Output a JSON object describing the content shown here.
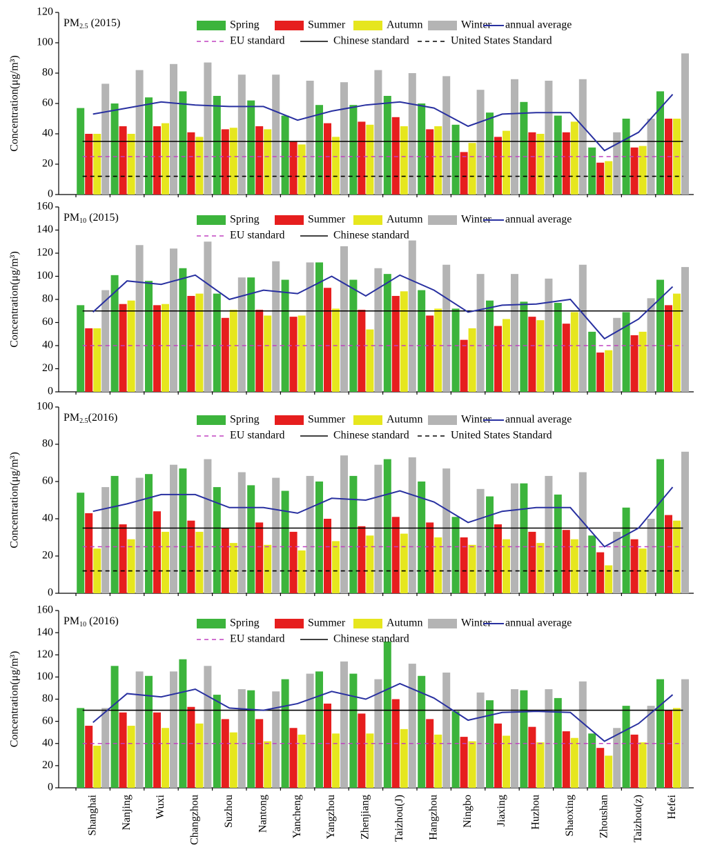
{
  "chart_data": [
    {
      "type": "bar",
      "title_main": "PM",
      "title_sub": "2.5",
      "title_year": " (2015)",
      "y_label": "Concentration(μg/m³)",
      "ylim": [
        0,
        120
      ],
      "yticks": [
        0,
        20,
        40,
        60,
        80,
        100,
        120
      ],
      "series": [
        {
          "name": "Spring",
          "color": "#3cb43c",
          "kind": "bar",
          "values": [
            57,
            60,
            64,
            68,
            65,
            62,
            52,
            59,
            59,
            65,
            60,
            46,
            54,
            61,
            52,
            31,
            50,
            68
          ]
        },
        {
          "name": "Summer",
          "color": "#e61e1e",
          "kind": "bar",
          "values": [
            40,
            45,
            45,
            41,
            43,
            45,
            35,
            47,
            48,
            51,
            43,
            28,
            38,
            41,
            41,
            21,
            31,
            50
          ]
        },
        {
          "name": "Autumn",
          "color": "#e6e61e",
          "kind": "bar",
          "values": [
            40,
            40,
            47,
            38,
            44,
            43,
            33,
            38,
            46,
            45,
            45,
            34,
            42,
            40,
            48,
            22,
            32,
            50
          ]
        },
        {
          "name": "Winter",
          "color": "#b4b4b4",
          "kind": "bar",
          "values": [
            73,
            82,
            86,
            87,
            79,
            79,
            75,
            74,
            82,
            80,
            78,
            69,
            76,
            75,
            76,
            41,
            50,
            93
          ]
        },
        {
          "name": "annual average",
          "color": "#2830a0",
          "kind": "line",
          "values": [
            53,
            57,
            61,
            59,
            58,
            58,
            49,
            55,
            59,
            61,
            57,
            45,
            53,
            54,
            54,
            29,
            41,
            66
          ]
        }
      ],
      "reference_lines": [
        {
          "name": "EU standard",
          "value": 25,
          "color": "#c040c0",
          "style": "dashed"
        },
        {
          "name": "Chinese standard",
          "value": 35,
          "color": "#000000",
          "style": "solid"
        },
        {
          "name": "United States Standard",
          "value": 12,
          "color": "#000000",
          "style": "dashed"
        }
      ]
    },
    {
      "type": "bar",
      "title_main": "PM",
      "title_sub": "10",
      "title_year": " (2015)",
      "y_label": "Concentration(μg/m³)",
      "ylim": [
        0,
        160
      ],
      "yticks": [
        0,
        20,
        40,
        60,
        80,
        100,
        120,
        140,
        160
      ],
      "series": [
        {
          "name": "Spring",
          "color": "#3cb43c",
          "kind": "bar",
          "values": [
            75,
            101,
            96,
            107,
            85,
            99,
            97,
            112,
            97,
            102,
            88,
            72,
            79,
            78,
            77,
            52,
            69,
            97
          ]
        },
        {
          "name": "Summer",
          "color": "#e61e1e",
          "kind": "bar",
          "values": [
            55,
            76,
            75,
            83,
            64,
            71,
            65,
            90,
            71,
            83,
            66,
            45,
            57,
            65,
            59,
            34,
            49,
            75
          ]
        },
        {
          "name": "Autumn",
          "color": "#e6e61e",
          "kind": "bar",
          "values": [
            55,
            79,
            76,
            85,
            71,
            66,
            66,
            72,
            54,
            87,
            72,
            55,
            63,
            62,
            69,
            36,
            52,
            85
          ]
        },
        {
          "name": "Winter",
          "color": "#b4b4b4",
          "kind": "bar",
          "values": [
            88,
            127,
            124,
            130,
            99,
            113,
            112,
            126,
            107,
            131,
            110,
            102,
            102,
            98,
            110,
            64,
            81,
            108
          ]
        },
        {
          "name": "annual average",
          "color": "#2830a0",
          "kind": "line",
          "values": [
            69,
            96,
            93,
            101,
            80,
            88,
            85,
            100,
            83,
            101,
            88,
            69,
            75,
            76,
            80,
            46,
            63,
            91
          ]
        }
      ],
      "reference_lines": [
        {
          "name": "EU standard",
          "value": 40,
          "color": "#c040c0",
          "style": "dashed"
        },
        {
          "name": "Chinese standard",
          "value": 70,
          "color": "#000000",
          "style": "solid"
        }
      ]
    },
    {
      "type": "bar",
      "title_main": "PM",
      "title_sub": "2.5",
      "title_year": "(2016)",
      "y_label": "Concentration(μg/m³)",
      "ylim": [
        0,
        100
      ],
      "yticks": [
        0,
        20,
        40,
        60,
        80,
        100
      ],
      "series": [
        {
          "name": "Spring",
          "color": "#3cb43c",
          "kind": "bar",
          "values": [
            54,
            63,
            64,
            67,
            57,
            58,
            55,
            60,
            63,
            72,
            60,
            41,
            52,
            59,
            53,
            31,
            46,
            72
          ]
        },
        {
          "name": "Summer",
          "color": "#e61e1e",
          "kind": "bar",
          "values": [
            43,
            37,
            44,
            39,
            35,
            38,
            33,
            40,
            36,
            41,
            38,
            30,
            37,
            33,
            34,
            22,
            29,
            42
          ]
        },
        {
          "name": "Autumn",
          "color": "#e6e61e",
          "kind": "bar",
          "values": [
            24,
            29,
            33,
            33,
            27,
            26,
            23,
            28,
            31,
            32,
            30,
            26,
            29,
            27,
            29,
            15,
            24,
            39
          ]
        },
        {
          "name": "Winter",
          "color": "#b4b4b4",
          "kind": "bar",
          "values": [
            57,
            62,
            69,
            72,
            65,
            62,
            63,
            74,
            69,
            73,
            67,
            56,
            59,
            63,
            65,
            33,
            40,
            76
          ]
        },
        {
          "name": "annual average",
          "color": "#2830a0",
          "kind": "line",
          "values": [
            44,
            48,
            53,
            53,
            46,
            46,
            43,
            51,
            50,
            55,
            49,
            38,
            44,
            46,
            46,
            25,
            35,
            57
          ]
        }
      ],
      "reference_lines": [
        {
          "name": "EU standard",
          "value": 25,
          "color": "#c040c0",
          "style": "dashed"
        },
        {
          "name": "Chinese standard",
          "value": 35,
          "color": "#000000",
          "style": "solid"
        },
        {
          "name": "United States Standard",
          "value": 12,
          "color": "#000000",
          "style": "dashed"
        }
      ]
    },
    {
      "type": "bar",
      "title_main": "PM",
      "title_sub": "10",
      "title_year": " (2016)",
      "y_label": "Concentration(μg/m³)",
      "ylim": [
        0,
        160
      ],
      "yticks": [
        0,
        20,
        40,
        60,
        80,
        100,
        120,
        140,
        160
      ],
      "categories": [
        "Shanghai",
        "Nanjing",
        "Wuxi",
        "Changzhou",
        "Suzhou",
        "Nantong",
        "Yancheng",
        "Yangzhou",
        "Zhenjiang",
        "Taizhou(J)",
        "Hangzhou",
        "Ningbo",
        "Jiaxing",
        "Huzhou",
        "Shaoxing",
        "Zhoushan",
        "Taizhou(z)",
        "Hefei"
      ],
      "series": [
        {
          "name": "Spring",
          "color": "#3cb43c",
          "kind": "bar",
          "values": [
            72,
            110,
            101,
            116,
            84,
            88,
            98,
            105,
            103,
            132,
            101,
            69,
            79,
            88,
            81,
            49,
            74,
            98
          ]
        },
        {
          "name": "Summer",
          "color": "#e61e1e",
          "kind": "bar",
          "values": [
            56,
            68,
            68,
            73,
            62,
            62,
            54,
            76,
            67,
            80,
            62,
            46,
            58,
            55,
            51,
            36,
            48,
            70
          ]
        },
        {
          "name": "Autumn",
          "color": "#e6e61e",
          "kind": "bar",
          "values": [
            38,
            56,
            54,
            58,
            50,
            42,
            48,
            49,
            49,
            53,
            48,
            42,
            47,
            41,
            45,
            29,
            41,
            72
          ]
        },
        {
          "name": "Winter",
          "color": "#b4b4b4",
          "kind": "bar",
          "values": [
            72,
            105,
            105,
            110,
            89,
            87,
            103,
            114,
            98,
            112,
            104,
            86,
            89,
            89,
            96,
            54,
            74,
            98
          ]
        },
        {
          "name": "annual average",
          "color": "#2830a0",
          "kind": "line",
          "values": [
            59,
            85,
            82,
            89,
            72,
            70,
            76,
            87,
            80,
            94,
            81,
            61,
            68,
            69,
            68,
            42,
            58,
            84
          ]
        }
      ],
      "reference_lines": [
        {
          "name": "EU standard",
          "value": 40,
          "color": "#c040c0",
          "style": "dashed"
        },
        {
          "name": "Chinese standard",
          "value": 70,
          "color": "#000000",
          "style": "solid"
        }
      ]
    }
  ]
}
